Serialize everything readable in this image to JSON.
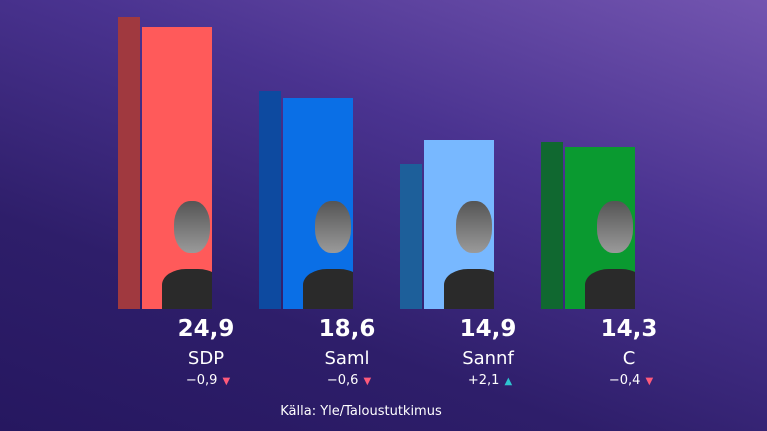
{
  "chart_data": {
    "type": "bar",
    "categories": [
      "SDP",
      "Saml",
      "Sannf",
      "C"
    ],
    "series": [
      {
        "role": "previous",
        "values": [
          25.8,
          19.2,
          12.8,
          14.7
        ]
      },
      {
        "role": "current",
        "values": [
          24.9,
          18.6,
          14.9,
          14.3
        ]
      }
    ],
    "value_labels": [
      "24,9",
      "18,6",
      "14,9",
      "14,3"
    ],
    "changes": [
      "−0,9",
      "−0,6",
      "+2,1",
      "−0,4"
    ],
    "change_direction": [
      "down",
      "down",
      "up",
      "down"
    ],
    "colors_previous": [
      "#a0393f",
      "#0d4aa0",
      "#1d5f9a",
      "#106830"
    ],
    "colors_current": [
      "#ff5a5a",
      "#0a6fe6",
      "#78b8ff",
      "#0a9a30"
    ],
    "change_colors": {
      "up": "#2ec4d0",
      "down": "#ff5a7a"
    },
    "ylim": [
      0,
      27
    ],
    "grid": false,
    "source": "Källa: Yle/Taloustutkimus"
  }
}
